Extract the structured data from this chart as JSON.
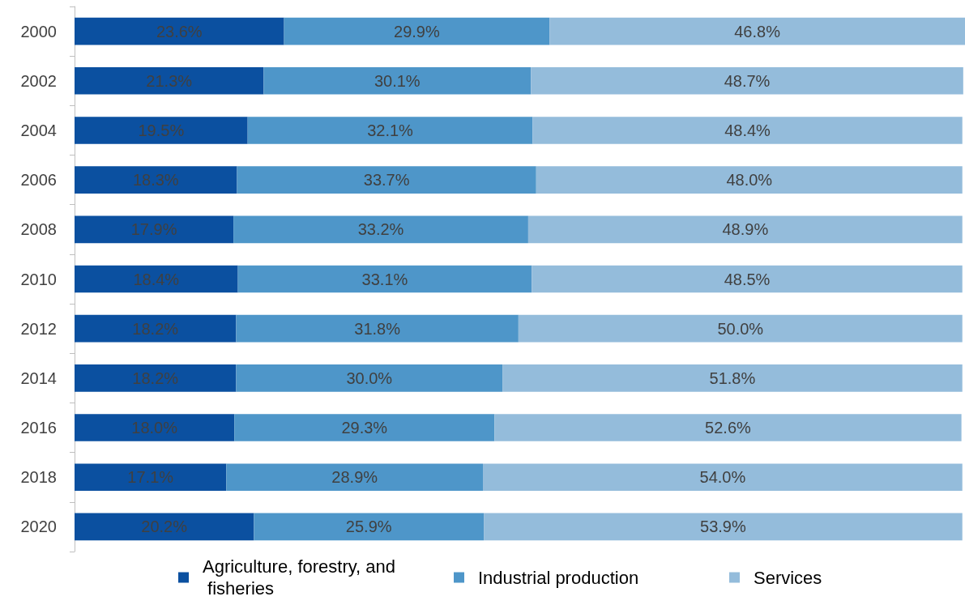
{
  "chart_data": {
    "type": "bar",
    "orientation": "horizontal",
    "stacked": true,
    "legend": "bottom",
    "categories": [
      "2000",
      "2002",
      "2004",
      "2006",
      "2008",
      "2010",
      "2012",
      "2014",
      "2016",
      "2018",
      "2020"
    ],
    "series": [
      {
        "name": "Agriculture, forestry, and fisheries",
        "color": "#0b50a0",
        "values": [
          23.6,
          21.3,
          19.5,
          18.3,
          17.9,
          18.4,
          18.2,
          18.2,
          18.0,
          17.1,
          20.2
        ],
        "value_labels": [
          "23.6%",
          "21.3%",
          "19.5%",
          "18.3%",
          "17.9%",
          "18.4%",
          "18.2%",
          "18.2%",
          "18.0%",
          "17.1%",
          "20.2%"
        ]
      },
      {
        "name": "Industrial production",
        "color": "#4e96c9",
        "values": [
          29.9,
          30.1,
          32.1,
          33.7,
          33.2,
          33.1,
          31.8,
          30.0,
          29.3,
          28.9,
          25.9
        ],
        "value_labels": [
          "29.9%",
          "30.1%",
          "32.1%",
          "33.7%",
          "33.2%",
          "33.1%",
          "31.8%",
          "30.0%",
          "29.3%",
          "28.9%",
          "25.9%"
        ]
      },
      {
        "name": "Services",
        "color": "#94bcdb",
        "values": [
          46.8,
          48.7,
          48.4,
          48.0,
          48.9,
          48.5,
          50.0,
          51.8,
          52.6,
          54.0,
          53.9
        ],
        "value_labels": [
          "46.8%",
          "48.7%",
          "48.4%",
          "48.0%",
          "48.9%",
          "48.5%",
          "50.0%",
          "51.8%",
          "52.6%",
          "54.0%",
          "53.9%"
        ]
      }
    ]
  }
}
